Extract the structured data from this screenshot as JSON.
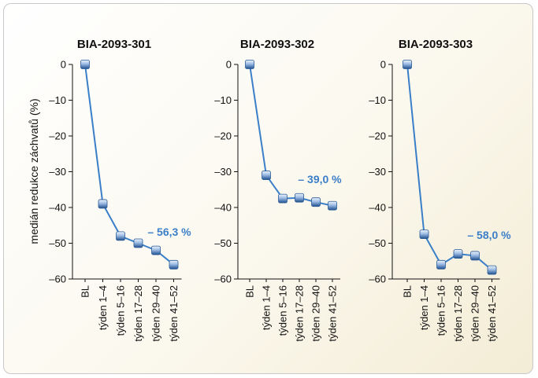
{
  "ylabel": "medián redukce záchvatů (%)",
  "chart_data": [
    {
      "type": "line",
      "title": "BIA-2093-301",
      "categories": [
        "BL",
        "týden 1–4",
        "týden 5–16",
        "týden 17–28",
        "týden 29–40",
        "týden 41–52"
      ],
      "values": [
        0,
        -39,
        -48,
        -50,
        -52,
        -56
      ],
      "yticks": [
        "0",
        "–10",
        "–20",
        "–30",
        "–40",
        "–50",
        "–60"
      ],
      "ylim": [
        -60,
        0
      ],
      "annotation": "– 56,3 %"
    },
    {
      "type": "line",
      "title": "BIA-2093-302",
      "categories": [
        "BL",
        "týden 1–4",
        "týden 5–16",
        "týden 17–28",
        "týden 29–40",
        "týden 41–52"
      ],
      "values": [
        0,
        -31,
        -37.5,
        -37.3,
        -38.5,
        -39.5
      ],
      "yticks": [
        "0",
        "–10",
        "–20",
        "–30",
        "–40",
        "–50",
        "–60"
      ],
      "ylim": [
        -60,
        0
      ],
      "annotation": "– 39,0 %"
    },
    {
      "type": "line",
      "title": "BIA-2093-303",
      "categories": [
        "BL",
        "týden 1–4",
        "týden 5–16",
        "týden 17–28",
        "týden 29–40",
        "týden 41–52"
      ],
      "values": [
        0,
        -47.5,
        -56,
        -53,
        -53.5,
        -57.5
      ],
      "yticks": [
        "0",
        "–10",
        "–20",
        "–30",
        "–40",
        "–50",
        "–60"
      ],
      "ylim": [
        -60,
        0
      ],
      "annotation": "– 58,0 %"
    }
  ],
  "colors": {
    "line": "#3a7fc8",
    "marker_light": "#d8e6f7",
    "marker_dark": "#2a5b96",
    "annotation": "#3a7fc8",
    "axis": "#111111"
  }
}
